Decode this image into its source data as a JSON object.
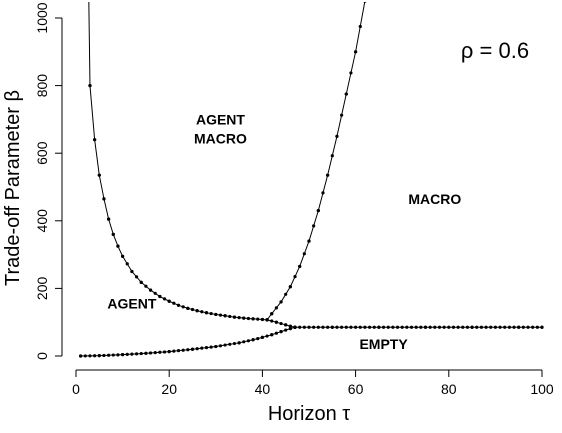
{
  "chart_data": {
    "type": "line",
    "title": "",
    "xlabel": "Horizon  τ",
    "ylabel": "Trade-off Parameter  β",
    "xlim": [
      0,
      100
    ],
    "ylim": [
      0,
      1000
    ],
    "xticks": [
      0,
      20,
      40,
      60,
      80,
      100
    ],
    "yticks": [
      0,
      200,
      400,
      600,
      800,
      1000
    ],
    "grid": false,
    "annotation": "ρ = 0.6",
    "regions": [
      {
        "lines": [
          "AGENT",
          "MACRO"
        ],
        "x": 31,
        "y": 685
      },
      {
        "lines": [
          "AGENT"
        ],
        "x": 12,
        "y": 140
      },
      {
        "lines": [
          "MACRO"
        ],
        "x": 77,
        "y": 450
      },
      {
        "lines": [
          "EMPTY"
        ],
        "x": 66,
        "y": 20
      }
    ],
    "series": [
      {
        "x": [
          3,
          4,
          5,
          6,
          7,
          8,
          9,
          10,
          12,
          14,
          16,
          18,
          20,
          22,
          24,
          26,
          28,
          30,
          32,
          34,
          36,
          38,
          40,
          41
        ],
        "values": [
          800,
          640,
          535,
          465,
          405,
          360,
          325,
          295,
          250,
          218,
          195,
          176,
          162,
          150,
          141,
          134,
          128,
          123,
          119,
          115,
          112,
          110,
          108,
          107
        ]
      },
      {
        "x": [
          41,
          42,
          44,
          46,
          48,
          50,
          52,
          54,
          56,
          58,
          60,
          62
        ],
        "values": [
          107,
          125,
          160,
          205,
          265,
          340,
          430,
          535,
          650,
          775,
          900,
          1050
        ]
      },
      {
        "x": [
          41,
          43,
          45,
          46,
          47
        ],
        "values": [
          107,
          100,
          92,
          88,
          85
        ]
      },
      {
        "x": [
          1,
          5,
          10,
          15,
          20,
          25,
          30,
          35,
          38,
          40,
          42,
          44,
          46,
          47
        ],
        "values": [
          0,
          1,
          4,
          8,
          13,
          20,
          28,
          39,
          48,
          55,
          63,
          72,
          81,
          85
        ]
      },
      {
        "x": [
          47,
          55,
          65,
          75,
          85,
          95,
          100
        ],
        "values": [
          85,
          85,
          85,
          85,
          85,
          85,
          85
        ]
      }
    ]
  }
}
